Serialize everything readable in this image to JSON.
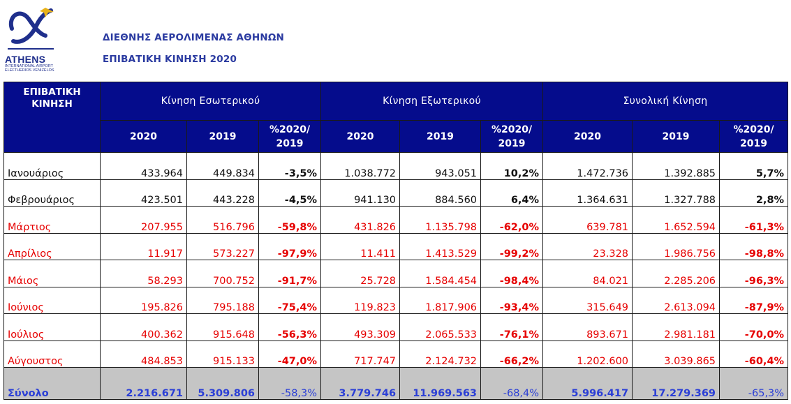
{
  "header": {
    "logo_word": "ATHENS",
    "logo_sub_1": "INTERNATIONAL AIRPORT",
    "logo_sub_2": "ELEFTHERIOS VENIZELOS",
    "org_title": "ΔΙΕΘΝΗΣ ΑΕΡΟΛΙΜΕΝΑΣ ΑΘΗΝΩΝ",
    "doc_title": "ΕΠΙΒΑΤΙΚΗ ΚΙΝΗΣΗ 2020"
  },
  "colors": {
    "header_bg": "#050c8c",
    "decline_text": "#e60000",
    "total_bg": "#c5c5c5",
    "total_text": "#2b3fd6"
  },
  "table": {
    "corner_line1": "ΕΠΙΒΑΤΙΚΗ",
    "corner_line2": "ΚΙΝΗΣΗ",
    "groups": [
      "Κίνηση Εσωτερικού",
      "Κίνηση Εξωτερικού",
      "Συνολική Κίνηση"
    ],
    "year_2020": "2020",
    "year_2019": "2019",
    "pct_line1": "%2020/",
    "pct_line2": "2019",
    "rows": [
      {
        "month": "Ιανουάριος",
        "cells": [
          "433.964",
          "449.834",
          "-3,5%",
          "1.038.772",
          "943.051",
          "10,2%",
          "1.472.736",
          "1.392.885",
          "5,7%"
        ]
      },
      {
        "month": "Φεβρουάριος",
        "cells": [
          "423.501",
          "443.228",
          "-4,5%",
          "941.130",
          "884.560",
          "6,4%",
          "1.364.631",
          "1.327.788",
          "2,8%"
        ]
      },
      {
        "month": "Μάρτιος",
        "cells": [
          "207.955",
          "516.796",
          "-59,8%",
          "431.826",
          "1.135.798",
          "-62,0%",
          "639.781",
          "1.652.594",
          "-61,3%"
        ]
      },
      {
        "month": "Απρίλιος",
        "cells": [
          "11.917",
          "573.227",
          "-97,9%",
          "11.411",
          "1.413.529",
          "-99,2%",
          "23.328",
          "1.986.756",
          "-98,8%"
        ]
      },
      {
        "month": "Μάιος",
        "cells": [
          "58.293",
          "700.752",
          "-91,7%",
          "25.728",
          "1.584.454",
          "-98,4%",
          "84.021",
          "2.285.206",
          "-96,3%"
        ]
      },
      {
        "month": "Ιούνιος",
        "cells": [
          "195.826",
          "795.188",
          "-75,4%",
          "119.823",
          "1.817.906",
          "-93,4%",
          "315.649",
          "2.613.094",
          "-87,9%"
        ]
      },
      {
        "month": "Ιούλιος",
        "cells": [
          "400.362",
          "915.648",
          "-56,3%",
          "493.309",
          "2.065.533",
          "-76,1%",
          "893.671",
          "2.981.181",
          "-70,0%"
        ]
      },
      {
        "month": "Αύγουστος",
        "cells": [
          "484.853",
          "915.133",
          "-47,0%",
          "717.747",
          "2.124.732",
          "-66,2%",
          "1.202.600",
          "3.039.865",
          "-60,4%"
        ]
      }
    ],
    "total": {
      "label": "Σύνολο",
      "cells": [
        "2.216.671",
        "5.309.806",
        "-58,3%",
        "3.779.746",
        "11.969.563",
        "-68,4%",
        "5.996.417",
        "17.279.369",
        "-65,3%"
      ]
    }
  }
}
